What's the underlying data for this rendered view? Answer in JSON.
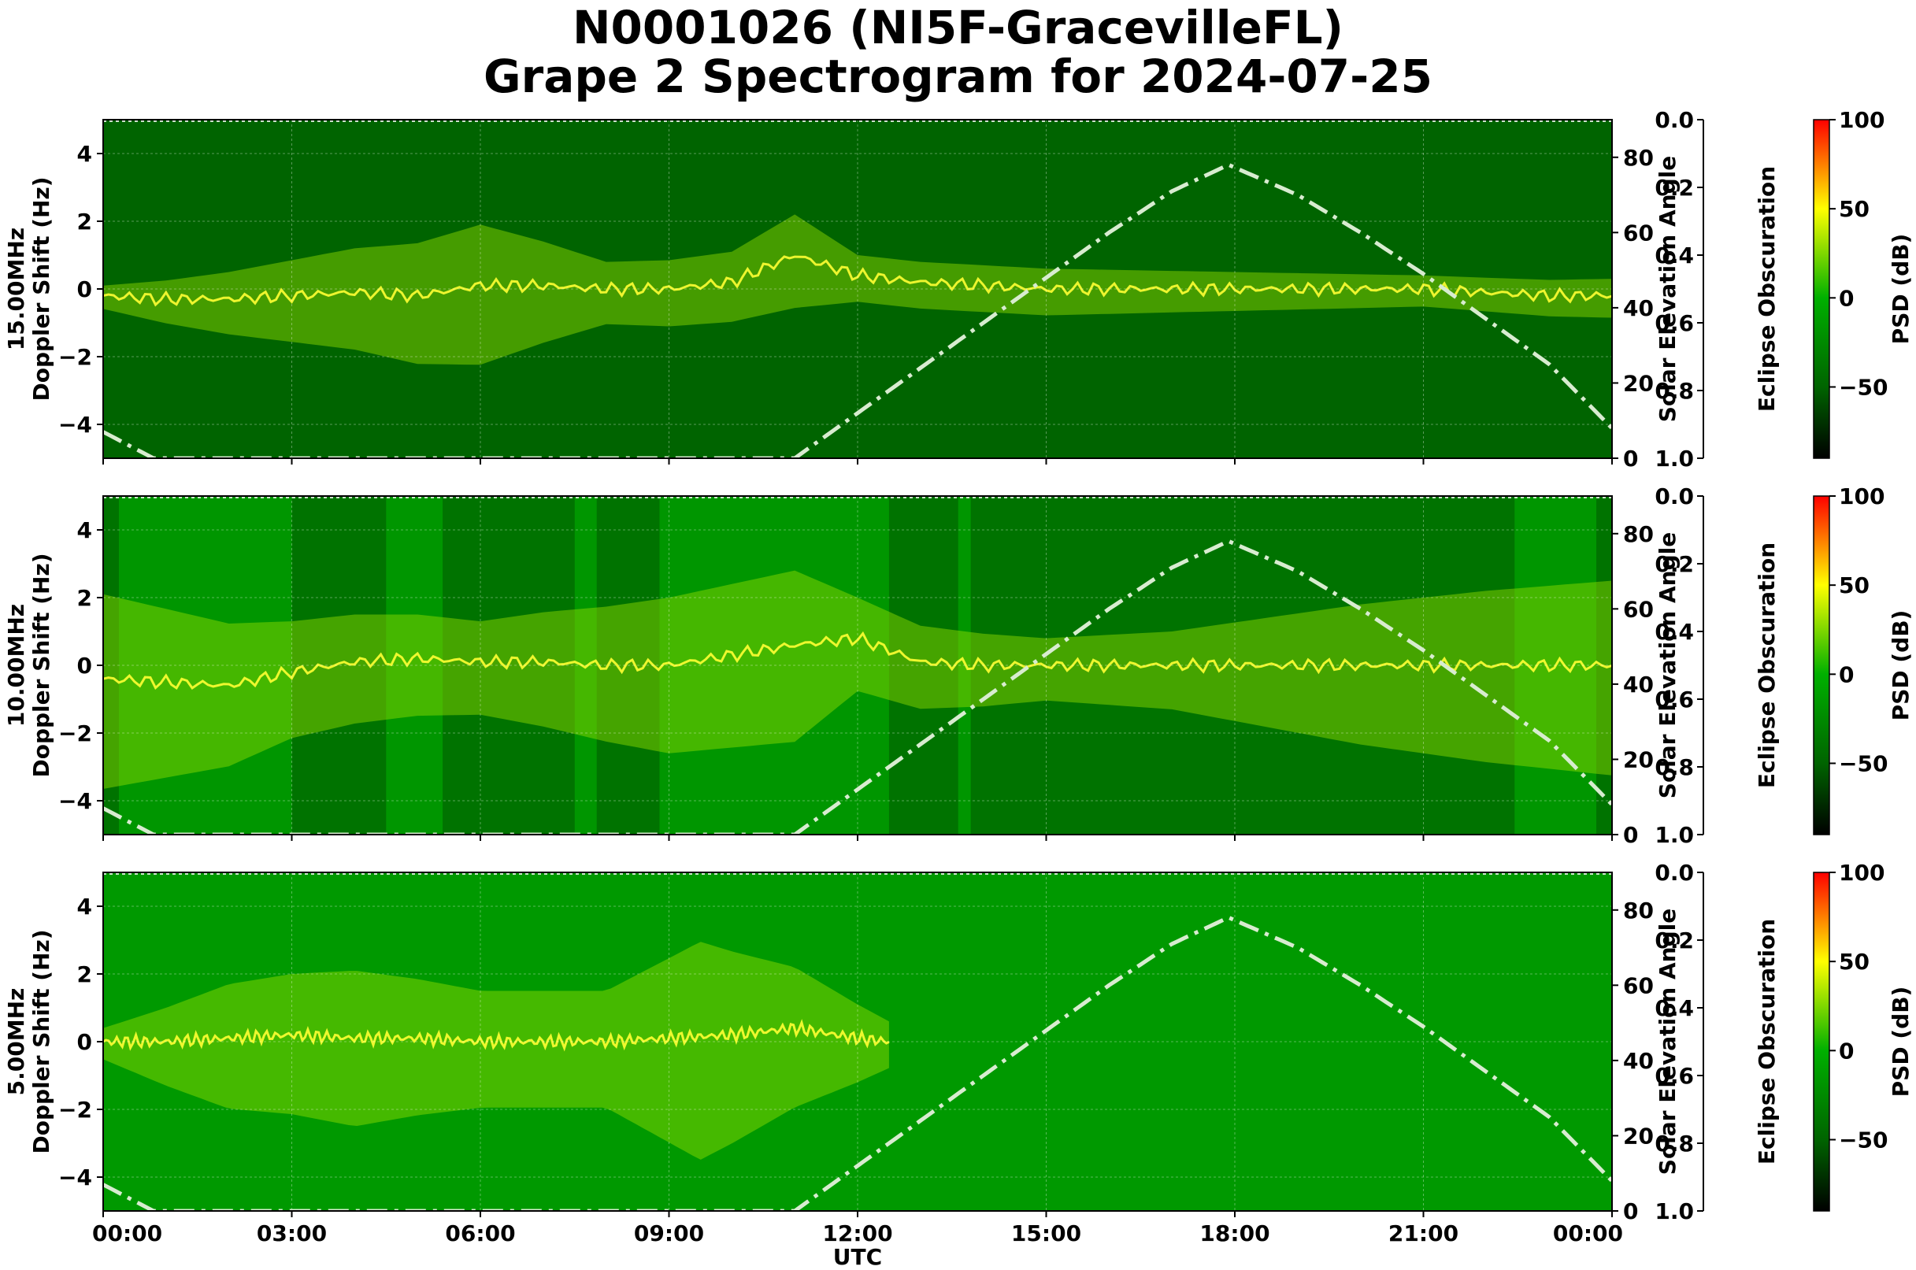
{
  "title_line1": "N0001026 (NI5F-GracevilleFL)",
  "title_line2": "Grape 2 Spectrogram for 2024-07-25",
  "chart_data": [
    {
      "type": "heatmap",
      "panel_label": "15.00MHz",
      "ylabel": "Doppler Shift (Hz)",
      "ylim": [
        -5,
        5
      ],
      "yticks": [
        "4",
        "2",
        "0",
        "−2",
        "−4"
      ],
      "xlabel": "",
      "xlim_hours": [
        0,
        24
      ],
      "xticks": [
        "00:00",
        "03:00",
        "06:00",
        "09:00",
        "12:00",
        "15:00",
        "18:00",
        "21:00",
        "00:00"
      ],
      "background_psd_db": -50,
      "trace": [
        {
          "t": 0,
          "f": -0.2
        },
        {
          "t": 1,
          "f": -0.3
        },
        {
          "t": 2,
          "f": -0.3
        },
        {
          "t": 3,
          "f": -0.2
        },
        {
          "t": 4,
          "f": -0.1
        },
        {
          "t": 5,
          "f": -0.2
        },
        {
          "t": 6,
          "f": 0.1
        },
        {
          "t": 7,
          "f": 0.1
        },
        {
          "t": 8,
          "f": 0.0
        },
        {
          "t": 9,
          "f": 0.0
        },
        {
          "t": 10,
          "f": 0.2
        },
        {
          "t": 11,
          "f": 1.0
        },
        {
          "t": 12,
          "f": 0.4
        },
        {
          "t": 13,
          "f": 0.2
        },
        {
          "t": 14,
          "f": 0.1
        },
        {
          "t": 15,
          "f": 0.0
        },
        {
          "t": 16,
          "f": 0.0
        },
        {
          "t": 17,
          "f": 0.0
        },
        {
          "t": 18,
          "f": 0.0
        },
        {
          "t": 19,
          "f": 0.0
        },
        {
          "t": 20,
          "f": 0.0
        },
        {
          "t": 21,
          "f": 0.0
        },
        {
          "t": 22,
          "f": -0.1
        },
        {
          "t": 23,
          "f": -0.2
        },
        {
          "t": 24,
          "f": -0.2
        }
      ],
      "spread_hz": [
        {
          "t": 0,
          "s": 0.3
        },
        {
          "t": 2,
          "s": 0.8
        },
        {
          "t": 4,
          "s": 1.3
        },
        {
          "t": 6,
          "s": 1.8
        },
        {
          "t": 8,
          "s": 0.8
        },
        {
          "t": 10,
          "s": 0.9
        },
        {
          "t": 11,
          "s": 1.2
        },
        {
          "t": 12,
          "s": 0.6
        },
        {
          "t": 15,
          "s": 0.6
        },
        {
          "t": 18,
          "s": 0.5
        },
        {
          "t": 21,
          "s": 0.4
        },
        {
          "t": 24,
          "s": 0.5
        }
      ],
      "bright_bands": []
    },
    {
      "type": "heatmap",
      "panel_label": "10.00MHz",
      "ylabel": "Doppler Shift (Hz)",
      "ylim": [
        -5,
        5
      ],
      "yticks": [
        "4",
        "2",
        "0",
        "−2",
        "−4"
      ],
      "xlabel": "",
      "xlim_hours": [
        0,
        24
      ],
      "xticks": [
        "00:00",
        "03:00",
        "06:00",
        "09:00",
        "12:00",
        "15:00",
        "18:00",
        "21:00",
        "00:00"
      ],
      "background_psd_db": -40,
      "trace": [
        {
          "t": 0,
          "f": -0.4
        },
        {
          "t": 1,
          "f": -0.5
        },
        {
          "t": 2,
          "f": -0.6
        },
        {
          "t": 3,
          "f": -0.2
        },
        {
          "t": 4,
          "f": 0.1
        },
        {
          "t": 5,
          "f": 0.2
        },
        {
          "t": 6,
          "f": 0.1
        },
        {
          "t": 7,
          "f": 0.1
        },
        {
          "t": 8,
          "f": 0.0
        },
        {
          "t": 9,
          "f": 0.0
        },
        {
          "t": 10,
          "f": 0.3
        },
        {
          "t": 11,
          "f": 0.6
        },
        {
          "t": 12,
          "f": 0.8
        },
        {
          "t": 13,
          "f": 0.1
        },
        {
          "t": 14,
          "f": 0.0
        },
        {
          "t": 15,
          "f": 0.0
        },
        {
          "t": 16,
          "f": 0.0
        },
        {
          "t": 17,
          "f": 0.0
        },
        {
          "t": 18,
          "f": 0.0
        },
        {
          "t": 19,
          "f": 0.0
        },
        {
          "t": 20,
          "f": 0.0
        },
        {
          "t": 21,
          "f": 0.0
        },
        {
          "t": 22,
          "f": 0.0
        },
        {
          "t": 23,
          "f": 0.0
        },
        {
          "t": 24,
          "f": 0.0
        }
      ],
      "spread_hz": [
        {
          "t": 0,
          "s": 2.5
        },
        {
          "t": 3,
          "s": 1.5
        },
        {
          "t": 6,
          "s": 1.2
        },
        {
          "t": 9,
          "s": 2.0
        },
        {
          "t": 11,
          "s": 2.2
        },
        {
          "t": 12,
          "s": 1.2
        },
        {
          "t": 15,
          "s": 0.8
        },
        {
          "t": 17,
          "s": 1.0
        },
        {
          "t": 20,
          "s": 1.8
        },
        {
          "t": 22,
          "s": 2.2
        },
        {
          "t": 24,
          "s": 2.5
        }
      ],
      "bright_bands": [
        {
          "t0": 0.25,
          "t1": 3.0
        },
        {
          "t0": 4.5,
          "t1": 5.4
        },
        {
          "t0": 7.5,
          "t1": 7.85
        },
        {
          "t0": 8.85,
          "t1": 12.5
        },
        {
          "t0": 13.6,
          "t1": 13.8
        },
        {
          "t0": 22.45,
          "t1": 23.75
        }
      ]
    },
    {
      "type": "heatmap",
      "panel_label": "5.00MHz",
      "ylabel": "Doppler Shift (Hz)",
      "ylim": [
        -5,
        5
      ],
      "yticks": [
        "4",
        "2",
        "0",
        "−2",
        "−4"
      ],
      "xlabel": "UTC",
      "xlim_hours": [
        0,
        24
      ],
      "xticks": [
        "00:00",
        "03:00",
        "06:00",
        "09:00",
        "12:00",
        "15:00",
        "18:00",
        "21:00",
        "00:00"
      ],
      "background_psd_db": -15,
      "trace": [
        {
          "t": 0,
          "f": 0.0
        },
        {
          "t": 1,
          "f": 0.0
        },
        {
          "t": 2,
          "f": 0.1
        },
        {
          "t": 3,
          "f": 0.2
        },
        {
          "t": 4,
          "f": 0.1
        },
        {
          "t": 5,
          "f": 0.1
        },
        {
          "t": 6,
          "f": 0.0
        },
        {
          "t": 7,
          "f": 0.0
        },
        {
          "t": 8,
          "f": 0.0
        },
        {
          "t": 9,
          "f": 0.1
        },
        {
          "t": 10,
          "f": 0.2
        },
        {
          "t": 11,
          "f": 0.4
        },
        {
          "t": 12,
          "f": 0.1
        },
        {
          "t": 12.5,
          "f": 0.0
        }
      ],
      "spread_hz": [
        {
          "t": 0,
          "s": 0.4
        },
        {
          "t": 2,
          "s": 1.6
        },
        {
          "t": 4,
          "s": 2.0
        },
        {
          "t": 6,
          "s": 1.5
        },
        {
          "t": 8,
          "s": 1.5
        },
        {
          "t": 9.5,
          "s": 2.8
        },
        {
          "t": 11,
          "s": 1.8
        },
        {
          "t": 12.5,
          "s": 0.6
        },
        {
          "t": 24,
          "s": 0.3
        }
      ],
      "bright_bands": []
    }
  ],
  "solar_axis": {
    "label": "Solar Elevation Angle",
    "ylim": [
      0,
      90
    ],
    "ticks": [
      "0",
      "20",
      "40",
      "60",
      "80"
    ],
    "line_color": "#d8ecd0",
    "curve": [
      {
        "t": 0,
        "deg": 7
      },
      {
        "t": 0.8,
        "deg": 0
      },
      {
        "t": 11.0,
        "deg": 0
      },
      {
        "t": 12,
        "deg": 12
      },
      {
        "t": 13,
        "deg": 24
      },
      {
        "t": 14,
        "deg": 36
      },
      {
        "t": 15,
        "deg": 48
      },
      {
        "t": 16,
        "deg": 60
      },
      {
        "t": 17,
        "deg": 71
      },
      {
        "t": 17.9,
        "deg": 78
      },
      {
        "t": 19,
        "deg": 70
      },
      {
        "t": 20,
        "deg": 60
      },
      {
        "t": 21,
        "deg": 49
      },
      {
        "t": 22,
        "deg": 37
      },
      {
        "t": 23,
        "deg": 25
      },
      {
        "t": 24,
        "deg": 8
      }
    ]
  },
  "eclipse_axis": {
    "label": "Eclipse Obscuration",
    "ticks": [
      "0.0",
      "0.2",
      "0.4",
      "0.6",
      "0.8",
      "1.0"
    ]
  },
  "colorbar": {
    "label": "PSD (dB)",
    "range_db": [
      -90,
      100
    ],
    "ticks": [
      "100",
      "50",
      "0",
      "−50"
    ],
    "colors": [
      "#000000",
      "#006400",
      "#00b000",
      "#ffff00",
      "#ff0000"
    ]
  }
}
